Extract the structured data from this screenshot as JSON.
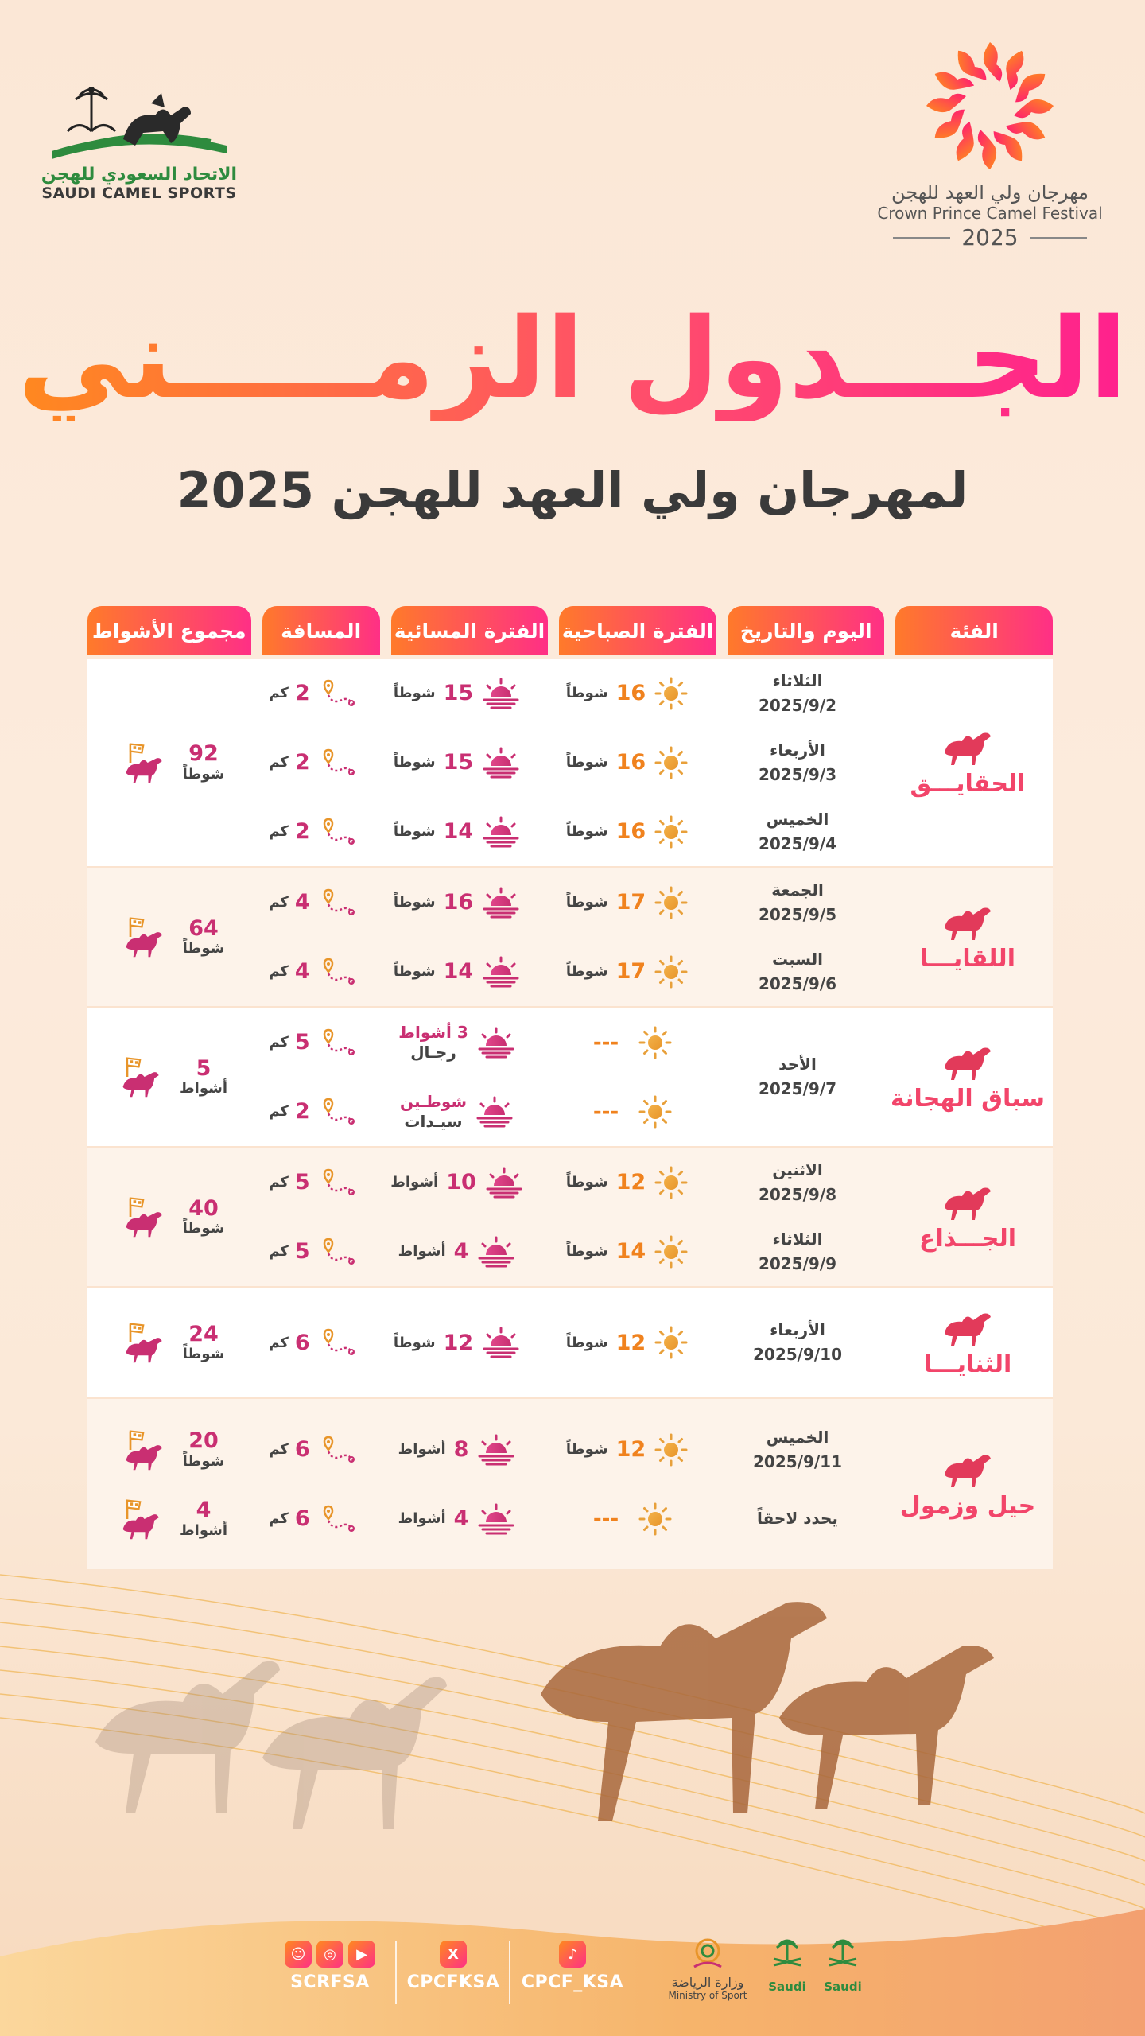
{
  "logo_left": {
    "arabic": "الاتحاد السعودي للهجن",
    "english": "SAUDI CAMEL SPORTS"
  },
  "logo_right": {
    "arabic": "مهرجان ولي العهد للهجن",
    "english": "Crown Prince Camel Festival",
    "year": "2025"
  },
  "title": "الجـــدول الزمـــــني",
  "subtitle": "لمهرجان ولي العهد للهجن 2025",
  "table": {
    "headers": {
      "category": "الفئة",
      "day_date": "اليوم والتاريخ",
      "morning": "الفترة الصباحية",
      "evening": "الفترة المسائية",
      "distance": "المسافة",
      "total": "مجموع الأشواط"
    },
    "groups": [
      {
        "category": "الحقايـــق",
        "rows": [
          {
            "day": "الثلاثاء",
            "date": "2025/9/2",
            "morning_num": "16",
            "morning_unit": "شوطاً",
            "evening_num": "15",
            "evening_unit": "شوطاً",
            "distance_num": "2",
            "distance_unit": "كم"
          },
          {
            "day": "الأربعاء",
            "date": "2025/9/3",
            "morning_num": "16",
            "morning_unit": "شوطاً",
            "evening_num": "15",
            "evening_unit": "شوطاً",
            "distance_num": "2",
            "distance_unit": "كم"
          },
          {
            "day": "الخميس",
            "date": "2025/9/4",
            "morning_num": "16",
            "morning_unit": "شوطاً",
            "evening_num": "14",
            "evening_unit": "شوطاً",
            "distance_num": "2",
            "distance_unit": "كم"
          }
        ],
        "totals": [
          {
            "num": "92",
            "unit": "شوطاً"
          }
        ]
      },
      {
        "category": "اللقايـــا",
        "rows": [
          {
            "day": "الجمعة",
            "date": "2025/9/5",
            "morning_num": "17",
            "morning_unit": "شوطاً",
            "evening_num": "16",
            "evening_unit": "شوطاً",
            "distance_num": "4",
            "distance_unit": "كم"
          },
          {
            "day": "السبت",
            "date": "2025/9/6",
            "morning_num": "17",
            "morning_unit": "شوطاً",
            "evening_num": "14",
            "evening_unit": "شوطاً",
            "distance_num": "4",
            "distance_unit": "كم"
          }
        ],
        "totals": [
          {
            "num": "64",
            "unit": "شوطاً"
          }
        ]
      },
      {
        "category": "سباق الهجانة",
        "day": "الأحد",
        "date": "2025/9/7",
        "rows": [
          {
            "morning_dash": "---",
            "evening_top": "3 أشواط",
            "evening_bottom": "رجـال",
            "distance_num": "5",
            "distance_unit": "كم"
          },
          {
            "morning_dash": "---",
            "evening_top": "شوطـين",
            "evening_bottom": "سيـدات",
            "distance_num": "2",
            "distance_unit": "كم"
          }
        ],
        "totals": [
          {
            "num": "5",
            "unit": "أشواط"
          }
        ]
      },
      {
        "category": "الجـــذاع",
        "rows": [
          {
            "day": "الاثنين",
            "date": "2025/9/8",
            "morning_num": "12",
            "morning_unit": "شوطاً",
            "evening_num": "10",
            "evening_unit": "أشواط",
            "distance_num": "5",
            "distance_unit": "كم"
          },
          {
            "day": "الثلاثاء",
            "date": "2025/9/9",
            "morning_num": "14",
            "morning_unit": "شوطاً",
            "evening_num": "4",
            "evening_unit": "أشواط",
            "distance_num": "5",
            "distance_unit": "كم"
          }
        ],
        "totals": [
          {
            "num": "40",
            "unit": "شوطاً"
          }
        ]
      },
      {
        "category": "الثنايـــا",
        "rows": [
          {
            "day": "الأربعاء",
            "date": "2025/9/10",
            "morning_num": "12",
            "morning_unit": "شوطاً",
            "evening_num": "12",
            "evening_unit": "شوطاً",
            "distance_num": "6",
            "distance_unit": "كم"
          }
        ],
        "totals": [
          {
            "num": "24",
            "unit": "شوطاً"
          }
        ]
      },
      {
        "category": "حيل وزمول",
        "rows": [
          {
            "day": "الخميس",
            "date": "2025/9/11",
            "morning_num": "12",
            "morning_unit": "شوطاً",
            "evening_num": "8",
            "evening_unit": "أشواط",
            "distance_num": "6",
            "distance_unit": "كم"
          },
          {
            "day": "يحدد لاحقاً",
            "date": "",
            "morning_dash": "---",
            "evening_num": "4",
            "evening_unit": "أشواط",
            "distance_num": "6",
            "distance_unit": "كم"
          }
        ],
        "totals": [
          {
            "num": "20",
            "unit": "شوطاً"
          },
          {
            "num": "4",
            "unit": "أشواط"
          }
        ]
      }
    ]
  },
  "footer": {
    "social": [
      {
        "handle": "SCRFSA",
        "icons": [
          "snapchat-icon",
          "instagram-icon",
          "youtube-icon"
        ]
      },
      {
        "handle": "CPCFKSA",
        "icons": [
          "x-icon"
        ]
      },
      {
        "handle": "CPCF_KSA",
        "icons": [
          "tiktok-icon"
        ]
      }
    ],
    "ministry": {
      "arabic": "وزارة الرياضة",
      "english": "Ministry of Sport"
    },
    "saudi_logos": [
      "Saudi",
      "Saudi"
    ]
  },
  "colors": {
    "orange": "#f0821e",
    "pink": "#ff2f86",
    "magenta": "#c92f72",
    "coral": "#f2456a",
    "green": "#2e8b3e"
  }
}
